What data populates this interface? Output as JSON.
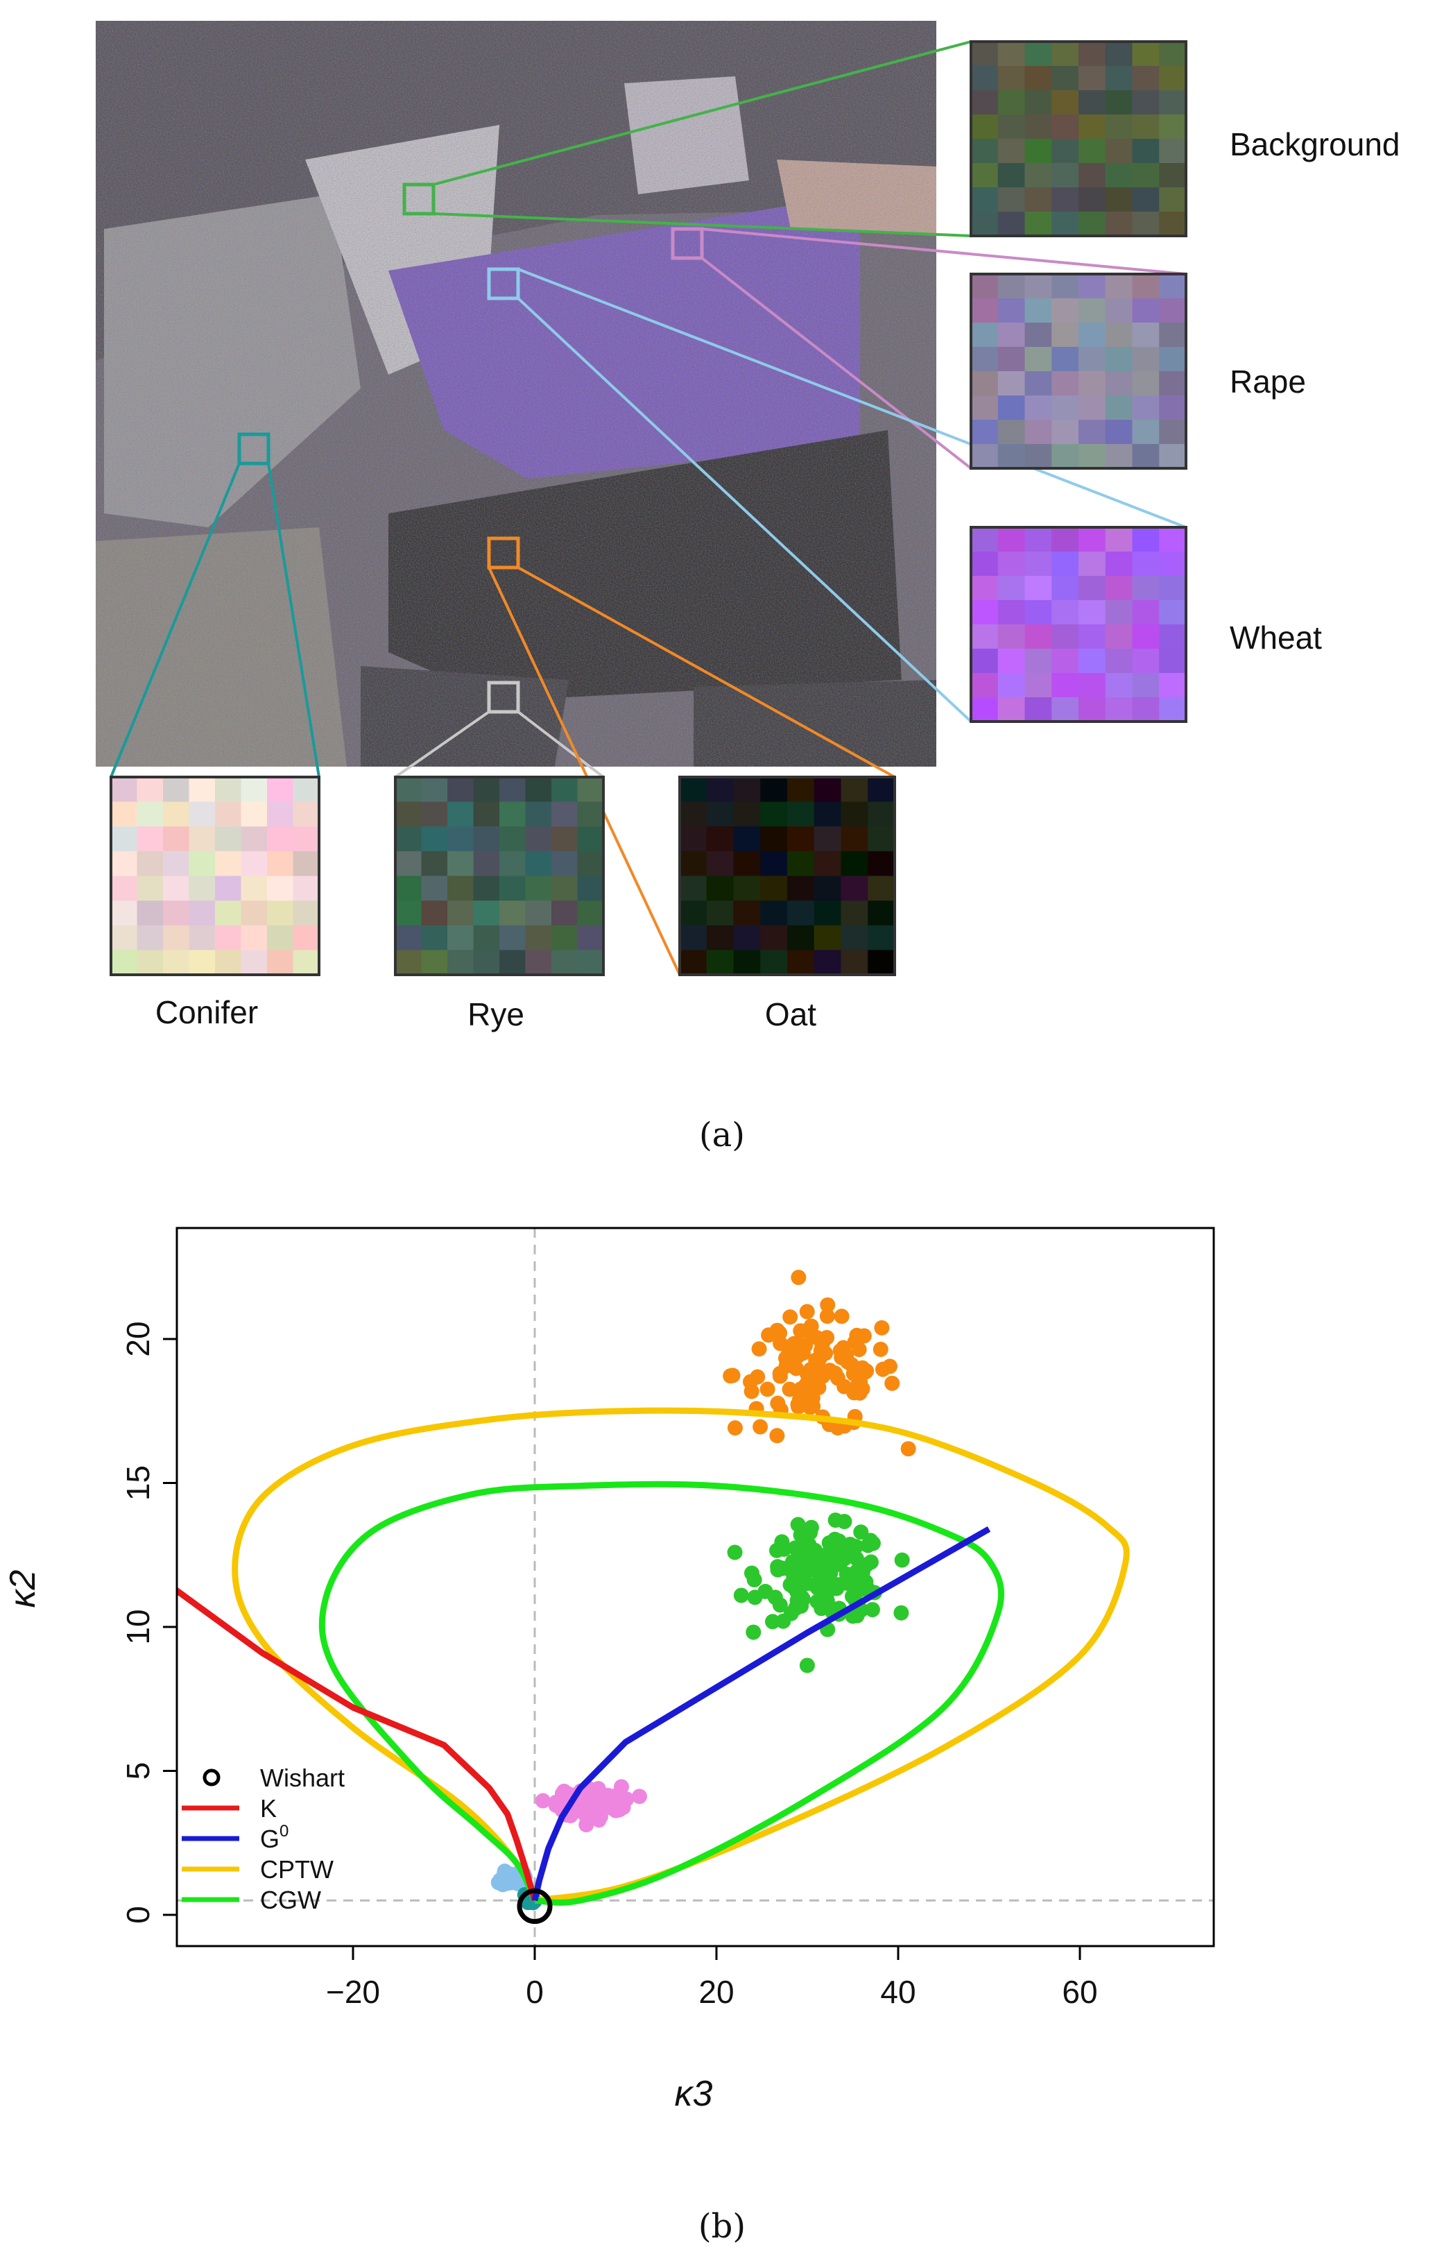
{
  "panel_a": {
    "caption": "(a)",
    "insets": [
      {
        "name": "Background",
        "color": "#44b24a"
      },
      {
        "name": "Rape",
        "color": "#c98ac6"
      },
      {
        "name": "Wheat",
        "color": "#8fcbea"
      },
      {
        "name": "Conifer",
        "color": "#1a9a9a"
      },
      {
        "name": "Rye",
        "color": "#c8c8c8"
      },
      {
        "name": "Oat",
        "color": "#f08a28"
      }
    ]
  },
  "panel_b": {
    "caption": "(b)",
    "xlabel": "κ3",
    "ylabel": "κ2",
    "x_ticks": [
      -20,
      0,
      20,
      40,
      60
    ],
    "x_tick_labels": [
      "−20",
      "0",
      "20",
      "40",
      "60"
    ],
    "y_ticks": [
      0,
      5,
      10,
      15,
      20
    ],
    "legend": [
      {
        "label": "Wishart",
        "color": "#000000",
        "kind": "circle"
      },
      {
        "label": "K",
        "color": "#e8191b",
        "kind": "line"
      },
      {
        "label": "G0",
        "color": "#1a1ad6",
        "kind": "line"
      },
      {
        "label": "CPTW",
        "color": "#f7c600",
        "kind": "line"
      },
      {
        "label": "CGW",
        "color": "#19e619",
        "kind": "line"
      }
    ]
  },
  "chart_data": {
    "type": "scatter",
    "xlabel": "κ3",
    "ylabel": "κ2",
    "xlim": [
      -40,
      74
    ],
    "ylim": [
      -1,
      24
    ],
    "grid": false,
    "reference_lines": [
      {
        "axis": "x",
        "value": 0
      },
      {
        "axis": "y",
        "value": 0.5
      }
    ],
    "legend_position": "bottom-left",
    "series": [
      {
        "name": "K",
        "kind": "line",
        "color": "#e8191b",
        "x": [
          -40,
          -30,
          -20,
          -10,
          -5,
          -3,
          -2,
          -1,
          0
        ],
        "y": [
          11.4,
          9.1,
          7.2,
          5.9,
          4.4,
          3.5,
          2.6,
          1.6,
          0.5
        ]
      },
      {
        "name": "G0",
        "kind": "line",
        "color": "#1a1ad6",
        "x": [
          0,
          0.5,
          1.5,
          3,
          5,
          7.5,
          10,
          20,
          30,
          40,
          50
        ],
        "y": [
          0.5,
          1.2,
          2.3,
          3.4,
          4.4,
          5.2,
          6.0,
          7.9,
          9.8,
          11.6,
          13.4
        ]
      },
      {
        "name": "CPTW",
        "kind": "line",
        "color": "#f7c600",
        "x": [
          0,
          -2,
          -8,
          -20,
          -30,
          -33,
          -30,
          -20,
          -5,
          10,
          25,
          40,
          55,
          63,
          65,
          60,
          45,
          25,
          10,
          0
        ],
        "y": [
          0.5,
          1.8,
          3.8,
          6.5,
          9.5,
          12.0,
          14.5,
          16.3,
          17.2,
          17.5,
          17.4,
          16.8,
          15.0,
          13.5,
          12.2,
          9.0,
          5.8,
          2.8,
          1.0,
          0.5
        ]
      },
      {
        "name": "CGW",
        "kind": "line",
        "color": "#19e619",
        "x": [
          0,
          -2,
          -6,
          -13,
          -22,
          -23,
          -18,
          -7,
          5,
          20,
          35,
          45,
          50,
          51,
          45,
          30,
          15,
          5,
          0
        ],
        "y": [
          0.5,
          1.8,
          3.0,
          5.0,
          8.5,
          11.0,
          13.3,
          14.6,
          14.9,
          14.9,
          14.3,
          13.3,
          12.3,
          10.5,
          7.2,
          4.0,
          1.5,
          0.5,
          0.5
        ]
      },
      {
        "name": "Wishart",
        "kind": "point",
        "color": "#000000",
        "x": [
          0
        ],
        "y": [
          0.3
        ]
      },
      {
        "name": "Oat",
        "kind": "cluster",
        "color": "#f7890f",
        "center": [
          31,
          18.8
        ],
        "spread": [
          9,
          1.7
        ],
        "n": 110
      },
      {
        "name": "Background",
        "kind": "cluster",
        "color": "#2cc72c",
        "center": [
          32,
          11.8
        ],
        "spread": [
          7,
          1.3
        ],
        "n": 140
      },
      {
        "name": "Rape",
        "kind": "cluster",
        "color": "#ee86e0",
        "center": [
          6,
          3.9
        ],
        "spread": [
          3.5,
          0.45
        ],
        "n": 150
      },
      {
        "name": "Wheat",
        "kind": "cluster",
        "color": "#86c0ea",
        "center": [
          -2.5,
          1.3
        ],
        "spread": [
          1.2,
          0.25
        ],
        "n": 30
      },
      {
        "name": "Conifer",
        "kind": "cluster",
        "color": "#169a9a",
        "center": [
          -0.3,
          0.6
        ],
        "spread": [
          0.6,
          0.15
        ],
        "n": 8
      }
    ]
  }
}
